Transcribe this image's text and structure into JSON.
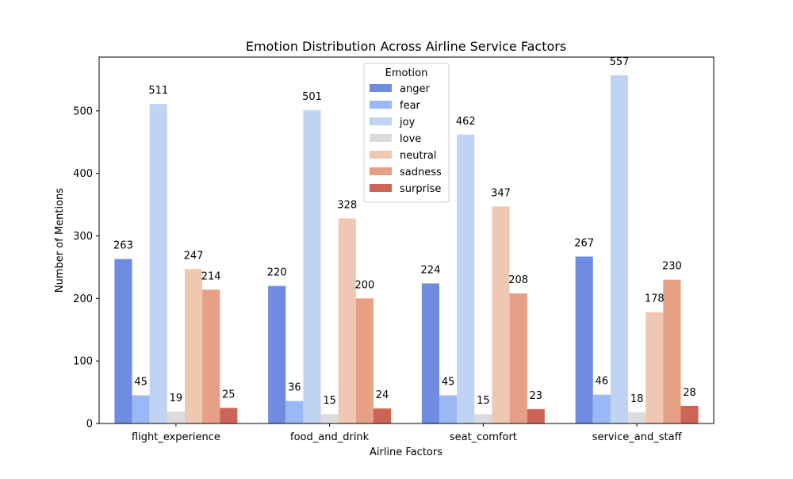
{
  "chart_data": {
    "type": "bar",
    "title": "Emotion Distribution Across Airline Service Factors",
    "xlabel": "Airline Factors",
    "ylabel": "Number of Mentions",
    "categories": [
      "flight_experience",
      "food_and_drink",
      "seat_comfort",
      "service_and_staff"
    ],
    "ylim": [
      0,
      586
    ],
    "yticks": [
      0,
      100,
      200,
      300,
      400,
      500
    ],
    "grid": false,
    "legend": {
      "title": "Emotion",
      "placement": "top-center"
    },
    "series": [
      {
        "name": "anger",
        "color": "#6f8de0",
        "values": [
          263,
          220,
          224,
          267
        ]
      },
      {
        "name": "fear",
        "color": "#9ab8f4",
        "values": [
          45,
          36,
          45,
          46
        ]
      },
      {
        "name": "joy",
        "color": "#c0d3f2",
        "values": [
          511,
          501,
          462,
          557
        ]
      },
      {
        "name": "love",
        "color": "#dcdcdc",
        "values": [
          19,
          15,
          15,
          18
        ]
      },
      {
        "name": "neutral",
        "color": "#efc7b2",
        "values": [
          247,
          328,
          347,
          178
        ]
      },
      {
        "name": "sadness",
        "color": "#e5a085",
        "values": [
          214,
          200,
          208,
          230
        ]
      },
      {
        "name": "surprise",
        "color": "#cd6556",
        "values": [
          25,
          24,
          23,
          28
        ]
      }
    ]
  }
}
